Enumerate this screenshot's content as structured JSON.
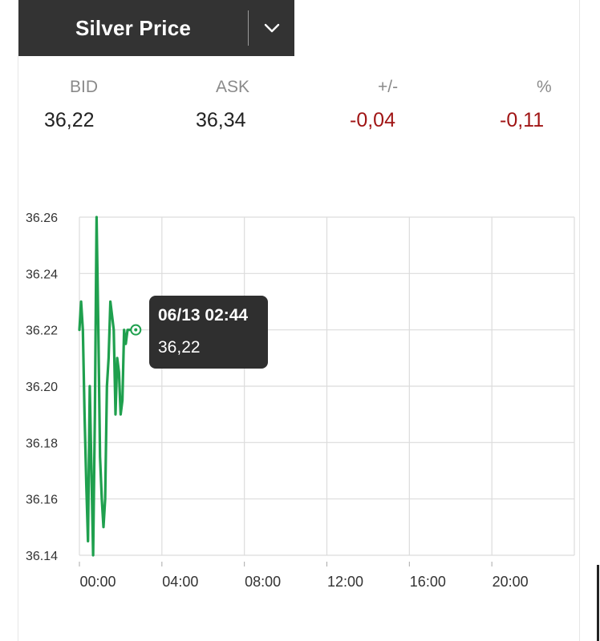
{
  "header": {
    "title": "Silver Price",
    "dropdown_icon": "chevron-down-icon",
    "background": "#333333"
  },
  "quote": {
    "bid_label": "BID",
    "bid_value": "36,22",
    "ask_label": "ASK",
    "ask_value": "36,34",
    "change_label": "+/-",
    "change_value": "-0,04",
    "percent_label": "%",
    "percent_value": "-0,11",
    "negative_color": "#a01515"
  },
  "tooltip": {
    "time": "06/13 02:44",
    "price": "36,22"
  },
  "chart_data": {
    "type": "line",
    "title": "",
    "xlabel": "",
    "ylabel": "",
    "grid": true,
    "line_color": "#1fa04e",
    "x_ticks": [
      "00:00",
      "04:00",
      "08:00",
      "12:00",
      "16:00",
      "20:00"
    ],
    "y_ticks": [
      "36.14",
      "36.16",
      "36.18",
      "36.20",
      "36.22",
      "36.24",
      "36.26"
    ],
    "xlim": [
      "00:00",
      "24:00"
    ],
    "ylim": [
      36.14,
      36.26
    ],
    "series": [
      {
        "x": [
          "00:00",
          "00:05",
          "00:10",
          "00:15",
          "00:20",
          "00:25",
          "00:30",
          "00:35",
          "00:40",
          "00:45",
          "00:50",
          "00:55",
          "01:00",
          "01:05",
          "01:10",
          "01:15",
          "01:20",
          "01:25",
          "01:30",
          "01:35",
          "01:40",
          "01:45",
          "01:50",
          "01:55",
          "02:00",
          "02:05",
          "02:10",
          "02:15",
          "02:20",
          "02:25",
          "02:30",
          "02:35",
          "02:40",
          "02:44"
        ],
        "values": [
          36.22,
          36.23,
          36.22,
          36.19,
          36.165,
          36.145,
          36.2,
          36.17,
          36.14,
          36.19,
          36.26,
          36.22,
          36.175,
          36.16,
          36.15,
          36.16,
          36.2,
          36.21,
          36.23,
          36.225,
          36.22,
          36.19,
          36.21,
          36.205,
          36.19,
          36.195,
          36.22,
          36.215,
          36.22,
          36.22,
          36.22,
          36.22,
          36.22,
          36.22
        ]
      }
    ],
    "highlight": {
      "x": "02:44",
      "y": 36.22
    }
  }
}
